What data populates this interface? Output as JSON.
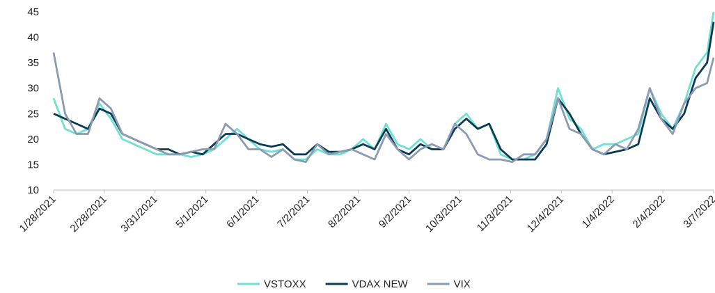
{
  "chart_data": {
    "type": "line",
    "x": [
      "1/28/2021",
      "2/4/2021",
      "2/11/2021",
      "2/18/2021",
      "2/25/2021",
      "3/4/2021",
      "3/11/2021",
      "3/18/2021",
      "3/25/2021",
      "4/1/2021",
      "4/8/2021",
      "4/15/2021",
      "4/22/2021",
      "4/29/2021",
      "5/6/2021",
      "5/13/2021",
      "5/20/2021",
      "5/27/2021",
      "6/3/2021",
      "6/10/2021",
      "6/17/2021",
      "6/24/2021",
      "7/1/2021",
      "7/8/2021",
      "7/15/2021",
      "7/22/2021",
      "7/29/2021",
      "8/5/2021",
      "8/12/2021",
      "8/19/2021",
      "8/26/2021",
      "9/2/2021",
      "9/9/2021",
      "9/16/2021",
      "9/23/2021",
      "9/30/2021",
      "10/7/2021",
      "10/14/2021",
      "10/21/2021",
      "10/28/2021",
      "11/4/2021",
      "11/11/2021",
      "11/18/2021",
      "11/25/2021",
      "12/2/2021",
      "12/9/2021",
      "12/16/2021",
      "12/23/2021",
      "12/30/2021",
      "1/6/2022",
      "1/13/2022",
      "1/20/2022",
      "1/27/2022",
      "2/3/2022",
      "2/10/2022",
      "2/17/2022",
      "2/24/2022",
      "3/3/2022",
      "3/7/2022"
    ],
    "series": [
      {
        "name": "VSTOXX",
        "color": "#72e0d0",
        "values": [
          28,
          22,
          21,
          22,
          27,
          24,
          20,
          19,
          18,
          17,
          17,
          17,
          16.5,
          17,
          18,
          20,
          22,
          20,
          18,
          17.5,
          18,
          16,
          16,
          18,
          17,
          17,
          18,
          20,
          18,
          23,
          19,
          18,
          20,
          18,
          18,
          23,
          25,
          22,
          23,
          17,
          16,
          16,
          17,
          20,
          30,
          24,
          22,
          18,
          19,
          19,
          20,
          21,
          30,
          25,
          22,
          27,
          34,
          37,
          45
        ]
      },
      {
        "name": "VDAX NEW",
        "color": "#0b3a53",
        "values": [
          25,
          24,
          23,
          22,
          26,
          25,
          21,
          20,
          19,
          18,
          18,
          17,
          17.5,
          17,
          19,
          21,
          21,
          20,
          19,
          18.5,
          19,
          17,
          17,
          19,
          17.5,
          17.5,
          18,
          19,
          18,
          22,
          18,
          17,
          19,
          18,
          18,
          22,
          24,
          22,
          23,
          18,
          16,
          16,
          16,
          19,
          28,
          25,
          21,
          18,
          17,
          17.5,
          18,
          19,
          28,
          24,
          22,
          25,
          32,
          35,
          43
        ]
      },
      {
        "name": "VIX",
        "color": "#8a9bb3",
        "values": [
          37,
          25,
          21,
          21,
          28,
          26,
          21,
          20,
          19,
          18,
          17,
          17,
          17.5,
          18,
          18,
          23,
          21,
          18,
          18,
          16.5,
          18,
          16,
          15.5,
          19,
          17,
          17.5,
          18,
          17,
          16,
          21,
          18,
          16,
          18,
          19,
          18,
          23,
          21,
          17,
          16,
          16,
          15.5,
          17,
          17,
          20,
          28,
          22,
          21,
          18,
          17,
          19,
          18,
          22,
          30,
          24,
          21,
          27,
          30,
          31,
          36
        ]
      }
    ],
    "xlim": [
      "1/28/2021",
      "3/7/2022"
    ],
    "xticks": [
      "1/28/2021",
      "2/28/2021",
      "3/31/2021",
      "5/1/2021",
      "6/1/2021",
      "7/2/2021",
      "8/2/2021",
      "9/2/2021",
      "10/3/2021",
      "11/3/2021",
      "12/4/2021",
      "1/4/2022",
      "2/4/2022",
      "3/7/2022"
    ],
    "ylim": [
      10,
      45
    ],
    "yticks": [
      10,
      15,
      20,
      25,
      30,
      35,
      40,
      45
    ],
    "grid": false,
    "legend": "bottom"
  }
}
